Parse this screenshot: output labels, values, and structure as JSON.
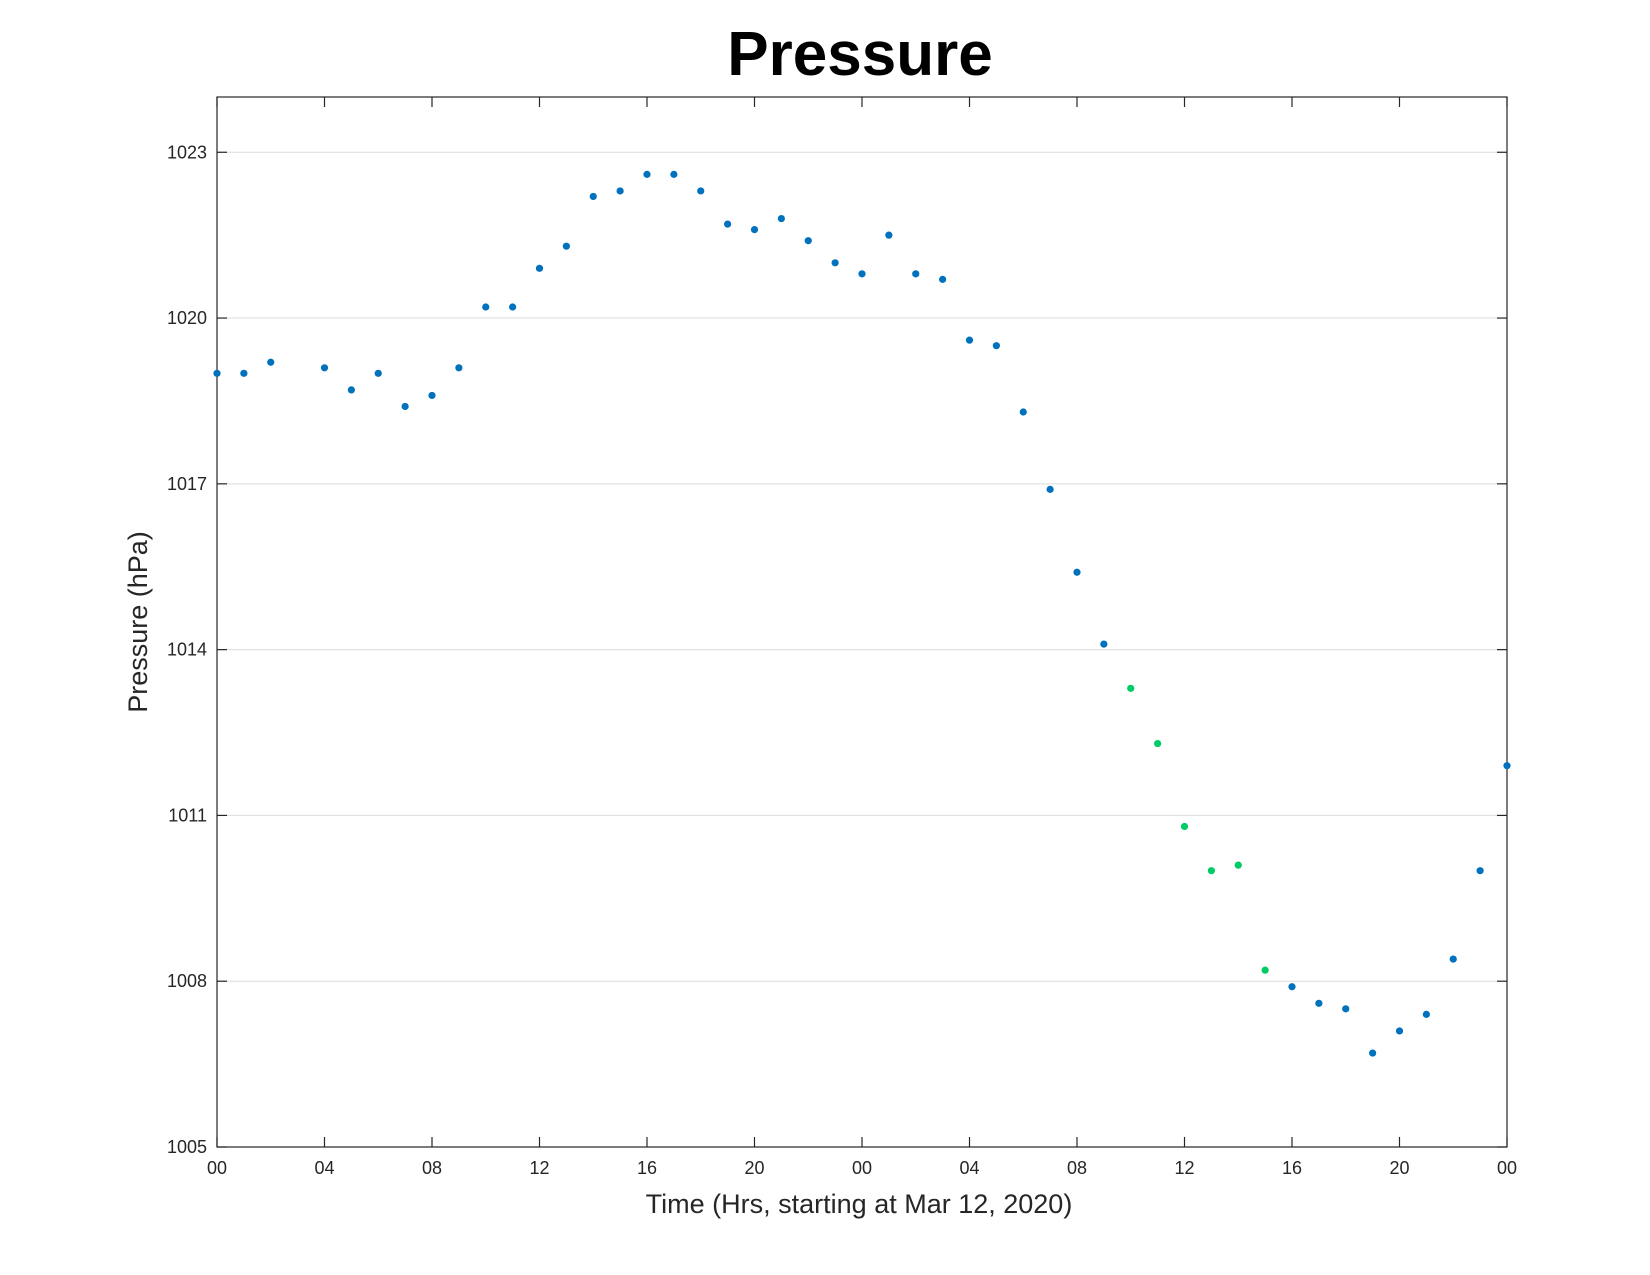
{
  "chart_data": {
    "type": "scatter",
    "title": "Pressure",
    "xlabel": "Time (Hrs, starting at Mar 12, 2020)",
    "ylabel": "Pressure (hPa)",
    "xlim": [
      0,
      48
    ],
    "ylim": [
      1005,
      1024
    ],
    "grid": "horizontal",
    "x_ticks": [
      {
        "value": 0,
        "label": "00"
      },
      {
        "value": 4,
        "label": "04"
      },
      {
        "value": 8,
        "label": "08"
      },
      {
        "value": 12,
        "label": "12"
      },
      {
        "value": 16,
        "label": "16"
      },
      {
        "value": 20,
        "label": "20"
      },
      {
        "value": 24,
        "label": "00"
      },
      {
        "value": 28,
        "label": "04"
      },
      {
        "value": 32,
        "label": "08"
      },
      {
        "value": 36,
        "label": "12"
      },
      {
        "value": 40,
        "label": "16"
      },
      {
        "value": 44,
        "label": "20"
      },
      {
        "value": 48,
        "label": "00"
      }
    ],
    "y_ticks": [
      {
        "value": 1005,
        "label": "1005"
      },
      {
        "value": 1008,
        "label": "1008"
      },
      {
        "value": 1011,
        "label": "1011"
      },
      {
        "value": 1014,
        "label": "1014"
      },
      {
        "value": 1017,
        "label": "1017"
      },
      {
        "value": 1020,
        "label": "1020"
      },
      {
        "value": 1023,
        "label": "1023"
      }
    ],
    "series": [
      {
        "color": "#0072bd",
        "x": [
          0,
          1,
          2,
          4,
          5,
          6,
          7,
          8,
          9,
          10,
          11,
          12,
          13,
          14,
          15,
          16,
          17,
          18,
          19,
          20,
          21,
          22,
          23,
          24,
          25,
          26,
          27,
          28,
          29,
          30,
          31,
          32,
          33,
          40,
          41,
          42,
          43,
          44,
          45,
          46,
          47,
          48
        ],
        "y": [
          1019.0,
          1019.0,
          1019.2,
          1019.1,
          1018.7,
          1019.0,
          1018.4,
          1018.6,
          1019.1,
          1020.2,
          1020.2,
          1020.9,
          1021.3,
          1022.2,
          1022.3,
          1022.6,
          1022.6,
          1022.3,
          1021.7,
          1021.6,
          1021.8,
          1021.4,
          1021.0,
          1020.8,
          1021.5,
          1020.8,
          1020.7,
          1019.6,
          1019.5,
          1018.3,
          1016.9,
          1015.4,
          1014.1,
          1007.9,
          1007.6,
          1007.5,
          1006.7,
          1007.1,
          1007.4,
          1008.4,
          1010.0,
          1011.9
        ]
      },
      {
        "color": "#00cc66",
        "x": [
          34,
          35,
          36,
          37,
          38,
          39
        ],
        "y": [
          1013.3,
          1012.3,
          1010.8,
          1010.0,
          1010.1,
          1008.2
        ]
      }
    ]
  }
}
